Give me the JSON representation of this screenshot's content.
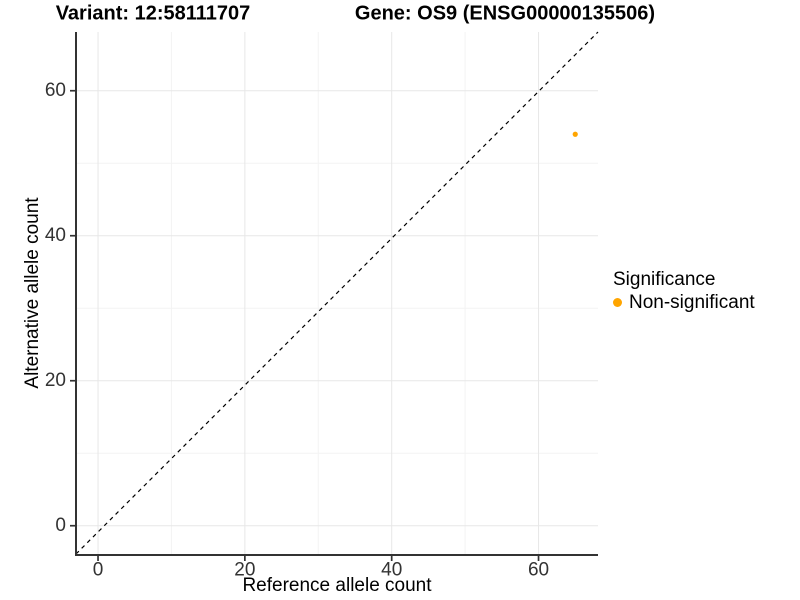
{
  "chart_data": {
    "type": "scatter",
    "titles": {
      "variant": "Variant: 12:58111707",
      "gene": "Gene: OS9 (ENSG00000135506)"
    },
    "xlabel": "Reference allele count",
    "ylabel": "Alternative allele count",
    "xlim": [
      -3.0,
      68.1
    ],
    "ylim": [
      -3.9,
      68.1
    ],
    "x_ticks": [
      0,
      20,
      40,
      60
    ],
    "y_ticks": [
      0,
      20,
      40,
      60
    ],
    "x_minor_gridlines": [
      10,
      30,
      50
    ],
    "y_minor_gridlines": [
      10,
      30,
      50
    ],
    "grid": true,
    "points": [
      {
        "x": 65,
        "y": 54,
        "significance": "Non-significant",
        "color": "#FFA500"
      }
    ],
    "reference_line": {
      "type": "identity",
      "slope": 1,
      "intercept": 0,
      "stroke": "#000000",
      "dash": "4 4"
    },
    "legend": {
      "title": "Significance",
      "position": "right",
      "items": [
        {
          "label": "Non-significant",
          "color": "#FFA500"
        }
      ]
    },
    "colors": {
      "grid_major": "#E7E7E7",
      "grid_minor": "#F3F3F3",
      "axis_line": "#333333",
      "tick_text": "#333333",
      "point": "#FFA500"
    }
  }
}
